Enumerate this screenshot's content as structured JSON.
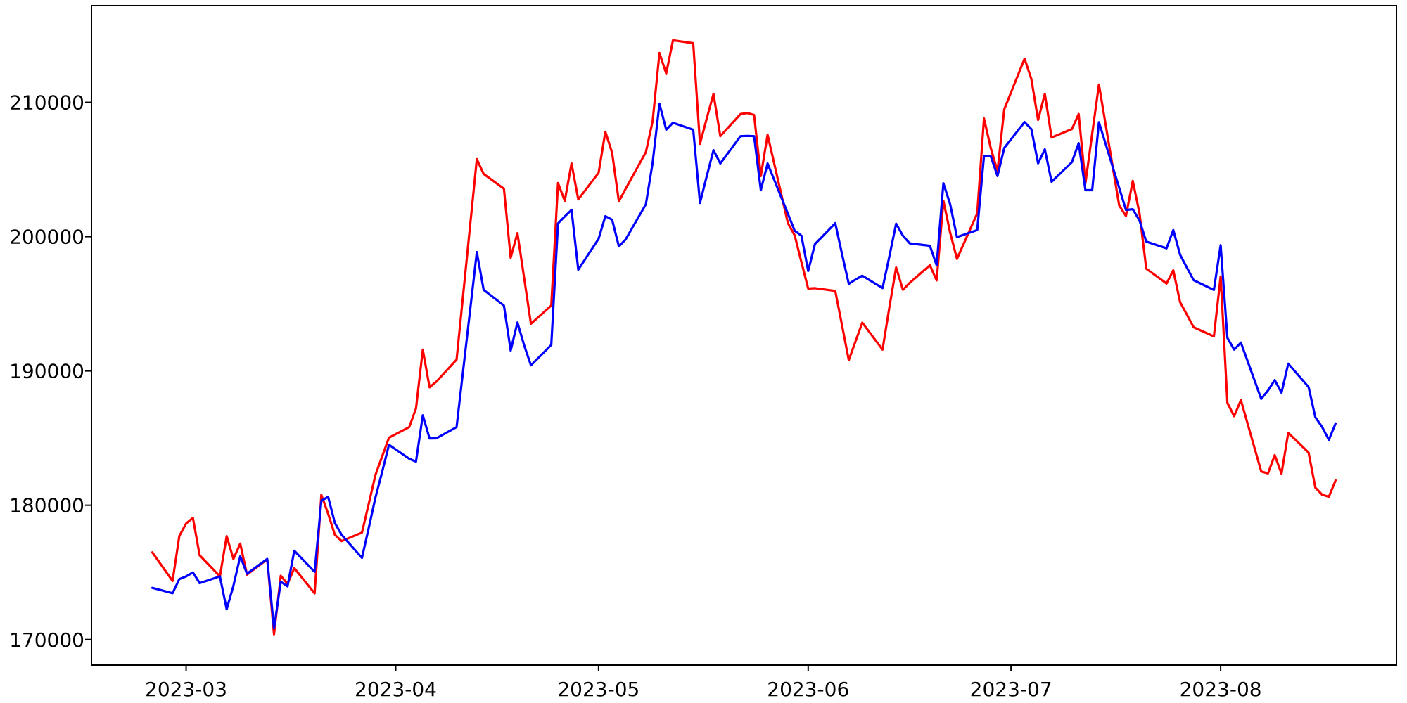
{
  "chart_data": {
    "type": "line",
    "title": "",
    "xlabel": "",
    "ylabel": "",
    "grid": false,
    "legend": null,
    "background_color": "#ffffff",
    "frame_color": "#000000",
    "x_tick_labels": [
      "2023-03",
      "2023-04",
      "2023-05",
      "2023-06",
      "2023-07",
      "2023-08"
    ],
    "x_tick_dates": [
      "2023-03-01",
      "2023-04-01",
      "2023-05-01",
      "2023-06-01",
      "2023-07-01",
      "2023-08-01"
    ],
    "y_ticks": [
      170000,
      180000,
      190000,
      200000,
      210000
    ],
    "ylim": [
      168100,
      217200
    ],
    "xlim_dates": [
      "2023-02-15",
      "2023-08-27"
    ],
    "dates": [
      "2023-02-24",
      "2023-02-27",
      "2023-02-28",
      "2023-03-01",
      "2023-03-02",
      "2023-03-03",
      "2023-03-06",
      "2023-03-07",
      "2023-03-08",
      "2023-03-09",
      "2023-03-10",
      "2023-03-13",
      "2023-03-14",
      "2023-03-15",
      "2023-03-16",
      "2023-03-17",
      "2023-03-20",
      "2023-03-21",
      "2023-03-22",
      "2023-03-23",
      "2023-03-24",
      "2023-03-27",
      "2023-03-28",
      "2023-03-29",
      "2023-03-30",
      "2023-03-31",
      "2023-04-03",
      "2023-04-04",
      "2023-04-05",
      "2023-04-06",
      "2023-04-07",
      "2023-04-10",
      "2023-04-11",
      "2023-04-12",
      "2023-04-13",
      "2023-04-14",
      "2023-04-17",
      "2023-04-18",
      "2023-04-19",
      "2023-04-20",
      "2023-04-21",
      "2023-04-24",
      "2023-04-25",
      "2023-04-26",
      "2023-04-27",
      "2023-04-28",
      "2023-05-01",
      "2023-05-02",
      "2023-05-03",
      "2023-05-04",
      "2023-05-05",
      "2023-05-08",
      "2023-05-09",
      "2023-05-10",
      "2023-05-11",
      "2023-05-12",
      "2023-05-15",
      "2023-05-16",
      "2023-05-17",
      "2023-05-18",
      "2023-05-19",
      "2023-05-22",
      "2023-05-23",
      "2023-05-24",
      "2023-05-25",
      "2023-05-26",
      "2023-05-29",
      "2023-05-30",
      "2023-05-31",
      "2023-06-01",
      "2023-06-02",
      "2023-06-05",
      "2023-06-06",
      "2023-06-07",
      "2023-06-08",
      "2023-06-09",
      "2023-06-12",
      "2023-06-13",
      "2023-06-14",
      "2023-06-15",
      "2023-06-16",
      "2023-06-19",
      "2023-06-20",
      "2023-06-21",
      "2023-06-22",
      "2023-06-23",
      "2023-06-26",
      "2023-06-27",
      "2023-06-28",
      "2023-06-29",
      "2023-06-30",
      "2023-07-03",
      "2023-07-04",
      "2023-07-05",
      "2023-07-06",
      "2023-07-07",
      "2023-07-10",
      "2023-07-11",
      "2023-07-12",
      "2023-07-13",
      "2023-07-14",
      "2023-07-17",
      "2023-07-18",
      "2023-07-19",
      "2023-07-20",
      "2023-07-21",
      "2023-07-24",
      "2023-07-25",
      "2023-07-26",
      "2023-07-27",
      "2023-07-28",
      "2023-07-31",
      "2023-08-01",
      "2023-08-02",
      "2023-08-03",
      "2023-08-04",
      "2023-08-07",
      "2023-08-08",
      "2023-08-09",
      "2023-08-10",
      "2023-08-11",
      "2023-08-14",
      "2023-08-15",
      "2023-08-16",
      "2023-08-17",
      "2023-08-18"
    ],
    "series": [
      {
        "name": "red",
        "color": "#ff0000",
        "values": [
          176490,
          174360,
          177710,
          178640,
          179060,
          176270,
          174700,
          177700,
          176000,
          177140,
          174830,
          175970,
          170390,
          174750,
          174140,
          175320,
          173440,
          180770,
          179370,
          177800,
          177330,
          177960,
          180100,
          182260,
          183650,
          185030,
          185820,
          187200,
          191580,
          188780,
          189200,
          190840,
          195800,
          200800,
          205770,
          204670,
          203570,
          198430,
          200260,
          196900,
          193510,
          194870,
          203990,
          202670,
          205450,
          202770,
          204760,
          207810,
          206240,
          202620,
          203560,
          206290,
          208600,
          213670,
          212150,
          214620,
          214400,
          206910,
          208800,
          210630,
          207480,
          209130,
          209200,
          209060,
          204510,
          207590,
          201000,
          200100,
          198100,
          196130,
          196160,
          195960,
          193400,
          190810,
          192200,
          193600,
          191590,
          194700,
          197700,
          196040,
          196550,
          197870,
          196740,
          202670,
          200300,
          198340,
          201730,
          208800,
          206600,
          204870,
          209480,
          213250,
          211740,
          208690,
          210630,
          207380,
          208010,
          209130,
          203980,
          207650,
          211320,
          202320,
          201540,
          204150,
          201730,
          197610,
          196510,
          197490,
          195130,
          194200,
          193250,
          192570,
          197030,
          187620,
          186630,
          187830,
          182510,
          182370,
          183730,
          182350,
          185390,
          183920,
          181310,
          180790,
          180630,
          181850
        ]
      },
      {
        "name": "blue",
        "color": "#0000ff",
        "values": [
          173850,
          173450,
          174500,
          174700,
          175000,
          174200,
          174700,
          172250,
          174000,
          176200,
          174900,
          176000,
          170830,
          174310,
          173960,
          176610,
          175040,
          180330,
          180630,
          178680,
          177800,
          176080,
          178300,
          180580,
          182500,
          184500,
          183460,
          183250,
          186700,
          184970,
          184980,
          185820,
          190160,
          194500,
          198850,
          196030,
          194870,
          191520,
          193610,
          191900,
          190420,
          191940,
          200990,
          201500,
          201990,
          197540,
          199840,
          201520,
          201260,
          199270,
          199790,
          202410,
          205500,
          209900,
          207960,
          208480,
          207960,
          202510,
          204500,
          206440,
          205450,
          207480,
          207500,
          207480,
          203460,
          205450,
          201700,
          200440,
          200070,
          197440,
          199440,
          201000,
          198700,
          196480,
          196800,
          197090,
          196170,
          198500,
          200960,
          200070,
          199500,
          199320,
          197870,
          203980,
          202410,
          199970,
          200490,
          206000,
          205990,
          204510,
          206600,
          208530,
          208010,
          205460,
          206500,
          204080,
          205550,
          206960,
          203460,
          203460,
          208520,
          203630,
          201990,
          202040,
          201200,
          199630,
          199130,
          200490,
          198660,
          197700,
          196760,
          196030,
          199360,
          192460,
          191590,
          192110,
          187920,
          188540,
          189320,
          188380,
          190540,
          188800,
          186550,
          185830,
          184870,
          186090
        ]
      }
    ]
  }
}
